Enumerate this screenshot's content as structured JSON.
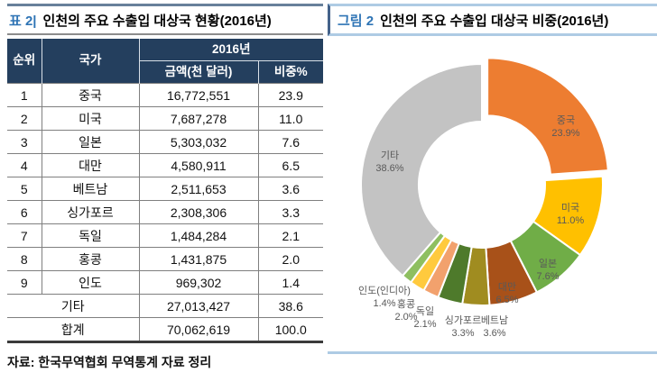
{
  "table_panel": {
    "title_prefix": "표 2|",
    "title": "인천의 주요 수출입 대상국 현황(2016년)",
    "header": {
      "rank": "순위",
      "country": "국가",
      "year": "2016년",
      "amount": "금액(천 달러)",
      "share": "비중%"
    },
    "rows": [
      {
        "rank": "1",
        "country": "중국",
        "amount": "16,772,551",
        "share": "23.9"
      },
      {
        "rank": "2",
        "country": "미국",
        "amount": "7,687,278",
        "share": "11.0"
      },
      {
        "rank": "3",
        "country": "일본",
        "amount": "5,303,032",
        "share": "7.6"
      },
      {
        "rank": "4",
        "country": "대만",
        "amount": "4,580,911",
        "share": "6.5"
      },
      {
        "rank": "5",
        "country": "베트남",
        "amount": "2,511,653",
        "share": "3.6"
      },
      {
        "rank": "6",
        "country": "싱가포르",
        "amount": "2,308,306",
        "share": "3.3"
      },
      {
        "rank": "7",
        "country": "독일",
        "amount": "1,484,284",
        "share": "2.1"
      },
      {
        "rank": "8",
        "country": "홍콩",
        "amount": "1,431,875",
        "share": "2.0"
      },
      {
        "rank": "9",
        "country": "인도",
        "amount": "969,302",
        "share": "1.4"
      }
    ],
    "etc_row": {
      "label": "기타",
      "amount": "27,013,427",
      "share": "38.6"
    },
    "total_row": {
      "label": "합계",
      "amount": "70,062,619",
      "share": "100.0"
    },
    "source": "자료: 한국무역협회 무역통계 자료 정리"
  },
  "figure_panel": {
    "title_prefix": "그림 2",
    "title": "인천의 주요 수출입 대상국 비중(2016년)"
  },
  "chart_data": {
    "type": "pie",
    "subtype": "donut",
    "title": "인천의 주요 수출입 대상국 비중(2016년)",
    "unit": "%",
    "start_angle_deg": 0,
    "direction": "clockwise",
    "slices": [
      {
        "label": "중국",
        "value": 23.9,
        "color": "#ED7D31",
        "exploded": true
      },
      {
        "label": "미국",
        "value": 11.0,
        "color": "#FFC000"
      },
      {
        "label": "일본",
        "value": 7.6,
        "color": "#70AD47"
      },
      {
        "label": "대만",
        "value": 6.5,
        "color": "#A85119"
      },
      {
        "label": "베트남",
        "value": 3.6,
        "color": "#A08C20"
      },
      {
        "label": "싱가포르",
        "value": 3.3,
        "color": "#4E7A2B"
      },
      {
        "label": "독일",
        "value": 2.1,
        "color": "#F2A16D"
      },
      {
        "label": "홍콩",
        "value": 2.0,
        "color": "#FFCA3E"
      },
      {
        "label": "인도(인디아)",
        "value": 1.4,
        "color": "#8EBF60"
      },
      {
        "label": "기타",
        "value": 38.6,
        "color": "#C3C3C3"
      }
    ]
  }
}
